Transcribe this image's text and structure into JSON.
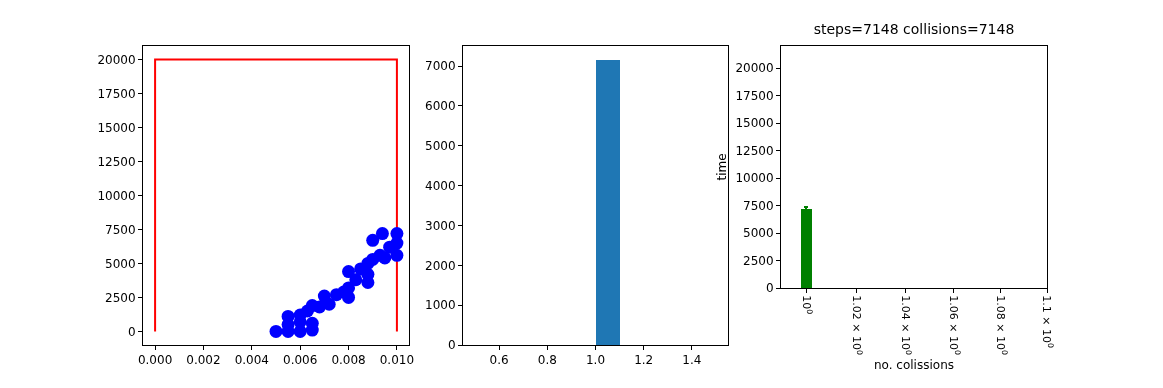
{
  "chart_data": [
    {
      "type": "scatter",
      "xlim": [
        -0.0005,
        0.0105
      ],
      "ylim": [
        -1000,
        21000
      ],
      "xticks": [
        {
          "value": 0,
          "label": "0.000"
        },
        {
          "value": 0.002,
          "label": "0.002"
        },
        {
          "value": 0.004,
          "label": "0.004"
        },
        {
          "value": 0.006,
          "label": "0.006"
        },
        {
          "value": 0.008,
          "label": "0.008"
        },
        {
          "value": 0.01,
          "label": "0.010"
        }
      ],
      "yticks": [
        0,
        2500,
        5000,
        7500,
        10000,
        12500,
        15000,
        17500,
        20000
      ],
      "series": [
        {
          "type": "line",
          "marker": "none",
          "color": "#ff0000",
          "x": [
            0,
            0,
            0.01,
            0.01
          ],
          "values": [
            0,
            20000,
            20000,
            0
          ]
        },
        {
          "type": "scatter",
          "marker": "circle",
          "color": "#0000ff",
          "x": [
            0.005,
            0.0055,
            0.006,
            0.0065,
            0.0055,
            0.006,
            0.0065,
            0.0055,
            0.006,
            0.0063,
            0.0068,
            0.0065,
            0.0072,
            0.007,
            0.0075,
            0.008,
            0.0078,
            0.008,
            0.0083,
            0.0088,
            0.008,
            0.0085,
            0.0088,
            0.0088,
            0.009,
            0.0093,
            0.0095,
            0.01,
            0.009,
            0.01,
            0.0097,
            0.01,
            0.0094
          ],
          "values": [
            0,
            0,
            0,
            100,
            500,
            700,
            600,
            1100,
            1200,
            1500,
            1800,
            1900,
            2000,
            2600,
            2700,
            2500,
            2900,
            3200,
            3800,
            3600,
            4400,
            4600,
            4200,
            5000,
            5300,
            5600,
            5400,
            5600,
            6700,
            7200,
            6200,
            6500,
            7200
          ]
        }
      ]
    },
    {
      "type": "histogram",
      "color": "#1f77b4",
      "bins": [
        0.5,
        0.6,
        0.7,
        0.8,
        0.9,
        1.0,
        1.1,
        1.2,
        1.3,
        1.4,
        1.5
      ],
      "values": [
        0,
        0,
        0,
        0,
        0,
        7150,
        0,
        0,
        0,
        0
      ],
      "xlim": [
        0.45,
        1.55
      ],
      "ylim": [
        0,
        7505
      ],
      "xticks": [
        {
          "value": 0.6,
          "label": "0.6"
        },
        {
          "value": 0.8,
          "label": "0.8"
        },
        {
          "value": 1.0,
          "label": "1.0"
        },
        {
          "value": 1.2,
          "label": "1.2"
        },
        {
          "value": 1.4,
          "label": "1.4"
        }
      ],
      "yticks": [
        0,
        1000,
        2000,
        3000,
        4000,
        5000,
        6000,
        7000
      ]
    },
    {
      "type": "bar",
      "title": "steps=7148 collisions=7148",
      "xlabel": "no. colissions",
      "ylabel": "time",
      "log": "x",
      "color": "#008000",
      "x": [
        1
      ],
      "values": [
        7200
      ],
      "errors": [
        200
      ],
      "xlim": [
        0.99,
        1.1
      ],
      "ylim": [
        0,
        22000
      ],
      "xticks": [
        {
          "value": 1,
          "label": "10$^{0}$"
        },
        {
          "value": 1.02,
          "label": "1.02 × 10$^{0}$"
        },
        {
          "value": 1.04,
          "label": "1.04 × 10$^{0}$"
        },
        {
          "value": 1.06,
          "label": "1.06 × 10$^{0}$"
        },
        {
          "value": 1.08,
          "label": "1.08 × 10$^{0}$"
        },
        {
          "value": 1.1,
          "label": "1.1 × 10$^{0}$"
        }
      ],
      "yticks": [
        0,
        2500,
        5000,
        7500,
        10000,
        12500,
        15000,
        17500,
        20000
      ]
    }
  ]
}
